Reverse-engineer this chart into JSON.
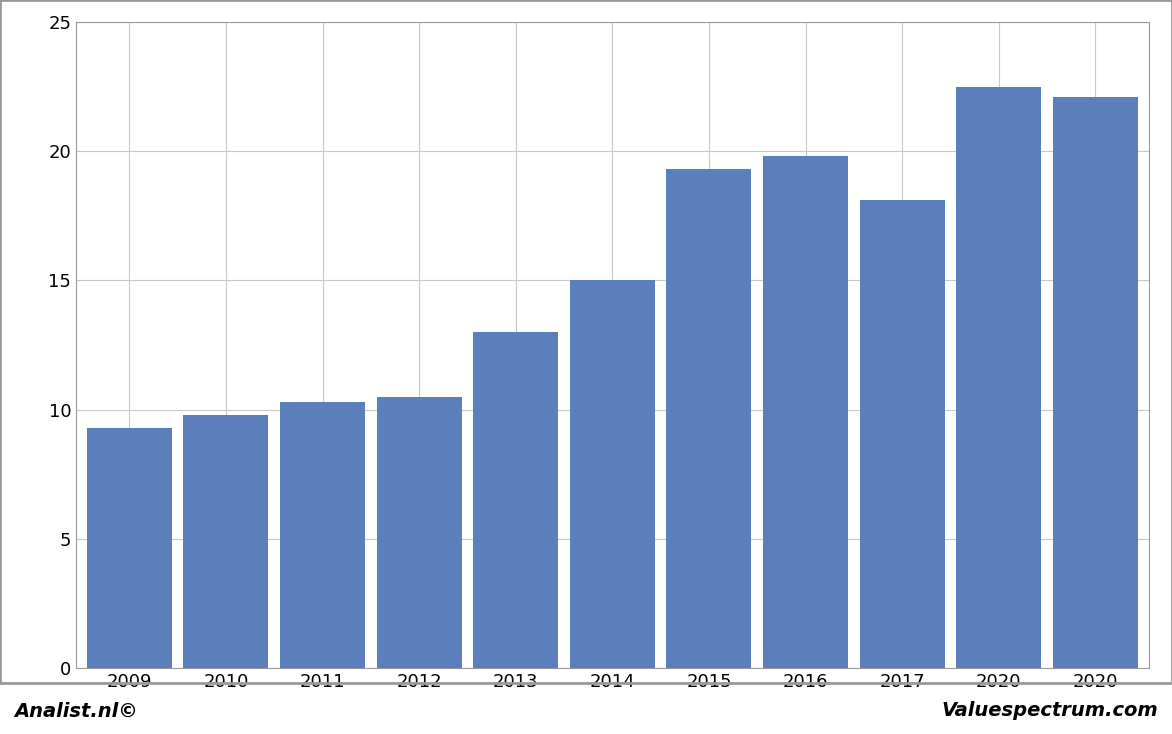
{
  "categories": [
    "2009",
    "2010",
    "2011",
    "2012",
    "2013",
    "2014",
    "2015",
    "2016",
    "2017",
    "2020",
    "2020"
  ],
  "values": [
    9.3,
    9.8,
    10.3,
    10.5,
    13.0,
    15.0,
    19.3,
    19.8,
    18.1,
    22.5,
    22.1
  ],
  "bar_color": "#5b7fbb",
  "ylim": [
    0,
    25
  ],
  "yticks": [
    0,
    5,
    10,
    15,
    20,
    25
  ],
  "background_color": "#ffffff",
  "plot_background": "#ffffff",
  "grid_color": "#c8c8c8",
  "footer_left": "Analist.nl©",
  "footer_right": "Valuespectrum.com",
  "footer_bg": "#d4d4d4",
  "border_color": "#999999",
  "bar_width": 0.88
}
